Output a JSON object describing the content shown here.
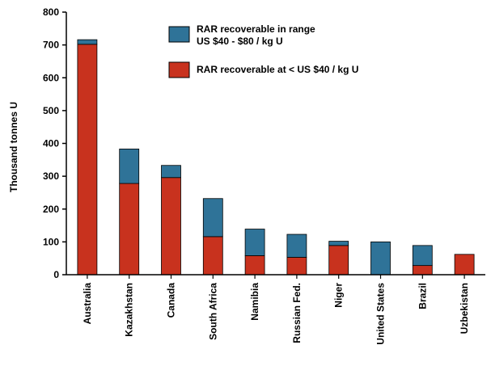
{
  "chart_data": {
    "type": "bar",
    "stacked": true,
    "categories": [
      "Australia",
      "Kazakhstan",
      "Canada",
      "South Africa",
      "Namibia",
      "Russian Fed.",
      "Niger",
      "United States",
      "Brazil",
      "Uzbekistan"
    ],
    "series": [
      {
        "name": "RAR recoverable at < US $40 / kg U",
        "color": "#c8321e",
        "values": [
          702,
          278,
          296,
          116,
          58,
          53,
          89,
          0,
          28,
          62
        ]
      },
      {
        "name_lines": [
          "RAR recoverable in range",
          "US $40 - $80 / kg U"
        ],
        "color": "#2f7398",
        "values": [
          14,
          105,
          37,
          116,
          81,
          70,
          13,
          100,
          61,
          0
        ]
      }
    ],
    "ylabel": "Thousand tonnes U",
    "ylim": [
      0,
      800
    ],
    "yticks": [
      0,
      100,
      200,
      300,
      400,
      500,
      600,
      700,
      800
    ],
    "grid": false,
    "legend_position": "top-right"
  }
}
